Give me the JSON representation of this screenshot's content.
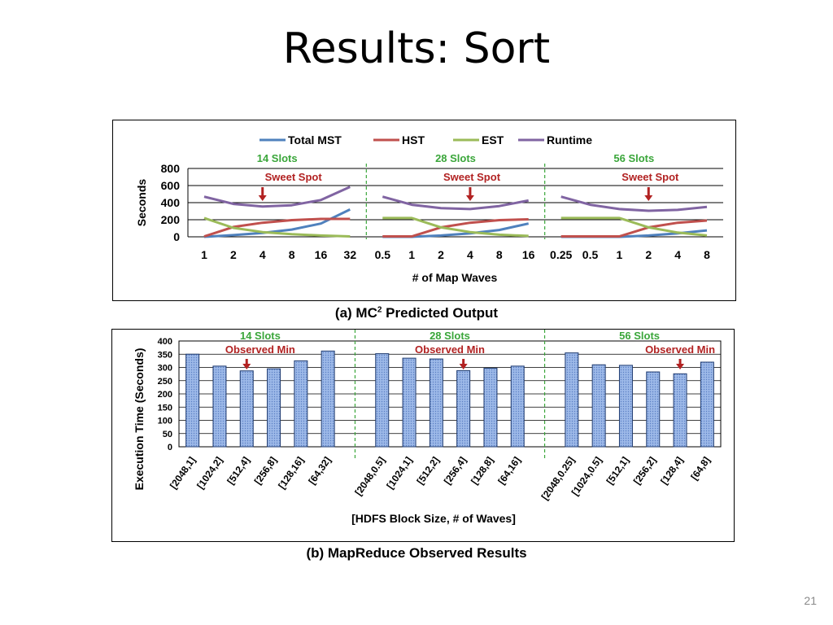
{
  "slide": {
    "title": "Results: Sort",
    "number": "21",
    "caption_a_prefix": "(a) MC",
    "caption_a_sup": "2",
    "caption_a_suffix": " Predicted Output",
    "caption_b": "(b) MapReduce Observed Results"
  },
  "colors": {
    "total_mst": "#4f81bd",
    "hst": "#c0504d",
    "est": "#9bbb59",
    "runtime": "#8064a2",
    "slot_label": "#3aa63a",
    "annotation": "#b22222",
    "bar_fill": "#9db9e8",
    "bar_stroke": "#1f3b70"
  },
  "chart_data": [
    {
      "type": "line",
      "ylabel": "Seconds",
      "xlabel": "# of Map Waves",
      "ylim": [
        0,
        800
      ],
      "yticks": [
        0,
        200,
        400,
        600,
        800
      ],
      "grid": true,
      "legend_position": "top",
      "series_names": [
        "Total MST",
        "HST",
        "EST",
        "Runtime"
      ],
      "groups": [
        {
          "label": "14 Slots",
          "annotation": "Sweet Spot",
          "annotation_index": 2,
          "x": [
            "1",
            "2",
            "4",
            "8",
            "16",
            "32"
          ],
          "series": [
            {
              "name": "Total MST",
              "values": [
                0,
                20,
                45,
                85,
                155,
                320
              ]
            },
            {
              "name": "HST",
              "values": [
                5,
                115,
                165,
                195,
                210,
                210
              ]
            },
            {
              "name": "EST",
              "values": [
                220,
                105,
                55,
                30,
                15,
                5
              ]
            },
            {
              "name": "Runtime",
              "values": [
                470,
                385,
                355,
                370,
                430,
                585
              ]
            }
          ]
        },
        {
          "label": "28 Slots",
          "annotation": "Sweet Spot",
          "annotation_index": 3,
          "x": [
            "0.5",
            "1",
            "2",
            "4",
            "8",
            "16"
          ],
          "series": [
            {
              "name": "Total MST",
              "values": [
                0,
                0,
                15,
                40,
                80,
                155
              ]
            },
            {
              "name": "HST",
              "values": [
                5,
                5,
                110,
                165,
                195,
                205
              ]
            },
            {
              "name": "EST",
              "values": [
                220,
                220,
                110,
                55,
                25,
                10
              ]
            },
            {
              "name": "Runtime",
              "values": [
                470,
                375,
                335,
                325,
                360,
                425
              ]
            }
          ]
        },
        {
          "label": "56 Slots",
          "annotation": "Sweet Spot",
          "annotation_index": 3,
          "x": [
            "0.25",
            "0.5",
            "1",
            "2",
            "4",
            "8"
          ],
          "series": [
            {
              "name": "Total MST",
              "values": [
                0,
                0,
                0,
                15,
                40,
                75
              ]
            },
            {
              "name": "HST",
              "values": [
                5,
                5,
                5,
                110,
                165,
                190
              ]
            },
            {
              "name": "EST",
              "values": [
                220,
                220,
                220,
                110,
                50,
                15
              ]
            },
            {
              "name": "Runtime",
              "values": [
                470,
                375,
                325,
                305,
                315,
                350
              ]
            }
          ]
        }
      ]
    },
    {
      "type": "bar",
      "ylabel": "Execution Time (Seconds)",
      "xlabel": "[HDFS Block Size, # of Waves]",
      "ylim": [
        0,
        400
      ],
      "yticks": [
        0,
        50,
        100,
        150,
        200,
        250,
        300,
        350,
        400
      ],
      "grid": true,
      "groups": [
        {
          "label": "14 Slots",
          "annotation": "Observed Min",
          "annotation_index": 2,
          "categories": [
            "[2048,1]",
            "[1024,2]",
            "[512,4]",
            "[256,8]",
            "[128,16]",
            "[64,32]"
          ],
          "values": [
            350,
            305,
            287,
            295,
            325,
            362
          ]
        },
        {
          "label": "28 Slots",
          "annotation": "Observed Min",
          "annotation_index": 3,
          "categories": [
            "[2048,0.5]",
            "[1024,1]",
            "[512,2]",
            "[256,4]",
            "[128,8]",
            "[64,16]"
          ],
          "values": [
            352,
            335,
            332,
            288,
            297,
            305
          ]
        },
        {
          "label": "56 Slots",
          "annotation": "Observed Min",
          "annotation_index": 4,
          "categories": [
            "[2048,0.25]",
            "[1024,0.5]",
            "[512,1]",
            "[256,2]",
            "[128,4]",
            "[64,8]"
          ],
          "values": [
            355,
            310,
            308,
            283,
            276,
            320
          ]
        }
      ]
    }
  ]
}
